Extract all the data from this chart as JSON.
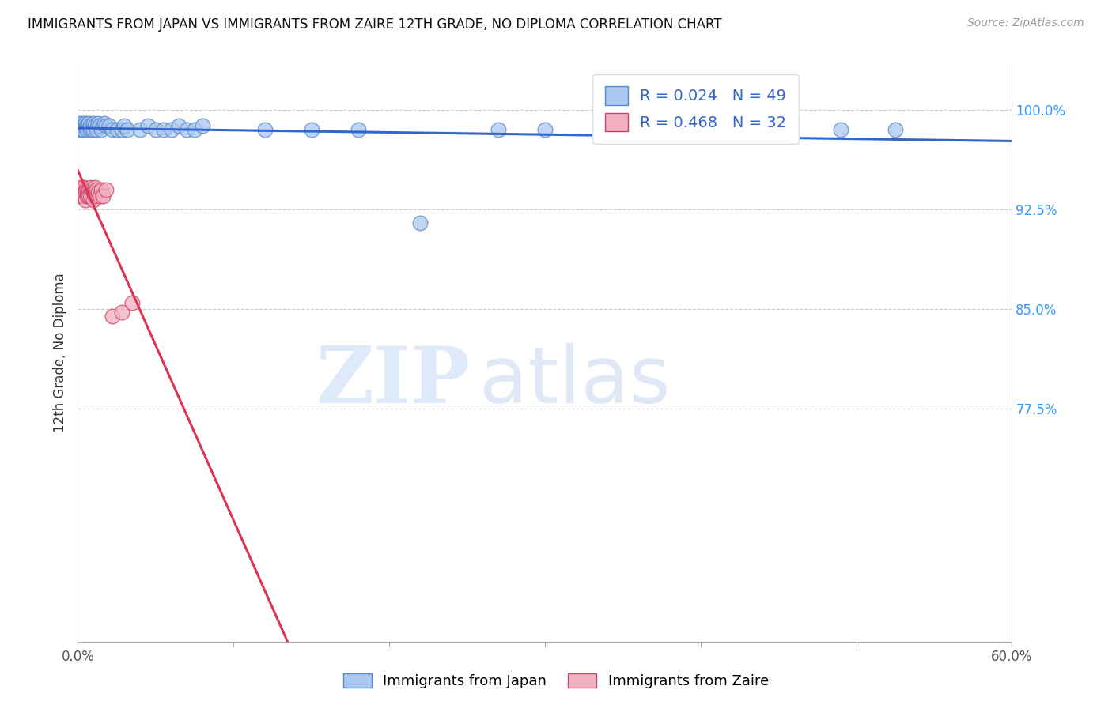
{
  "title": "IMMIGRANTS FROM JAPAN VS IMMIGRANTS FROM ZAIRE 12TH GRADE, NO DIPLOMA CORRELATION CHART",
  "source": "Source: ZipAtlas.com",
  "ylabel": "12th Grade, No Diploma",
  "x_min": 0.0,
  "x_max": 0.6,
  "y_min": 0.6,
  "y_max": 1.035,
  "x_ticks": [
    0.0,
    0.1,
    0.2,
    0.3,
    0.4,
    0.5,
    0.6
  ],
  "x_tick_labels": [
    "0.0%",
    "",
    "",
    "",
    "",
    "",
    "60.0%"
  ],
  "y_ticks": [
    0.775,
    0.85,
    0.925,
    1.0
  ],
  "y_tick_labels": [
    "77.5%",
    "85.0%",
    "92.5%",
    "100.0%"
  ],
  "legend_japan_label": "Immigrants from Japan",
  "legend_zaire_label": "Immigrants from Zaire",
  "R_japan": "0.024",
  "N_japan": "49",
  "R_zaire": "0.468",
  "N_zaire": "32",
  "japan_color": "#aac8f0",
  "zaire_color": "#f0b0c0",
  "japan_edge_color": "#5588cc",
  "zaire_edge_color": "#cc4466",
  "japan_line_color": "#3366cc",
  "zaire_line_color": "#dd3355",
  "background_color": "#ffffff",
  "watermark_zip": "ZIP",
  "watermark_atlas": "atlas",
  "japan_x": [
    0.001,
    0.002,
    0.002,
    0.003,
    0.003,
    0.004,
    0.004,
    0.005,
    0.005,
    0.006,
    0.006,
    0.007,
    0.008,
    0.008,
    0.009,
    0.01,
    0.01,
    0.011,
    0.012,
    0.013,
    0.014,
    0.015,
    0.017,
    0.018,
    0.02,
    0.022,
    0.025,
    0.028,
    0.03,
    0.032,
    0.04,
    0.045,
    0.05,
    0.055,
    0.06,
    0.065,
    0.07,
    0.075,
    0.08,
    0.12,
    0.15,
    0.18,
    0.22,
    0.27,
    0.3,
    0.42,
    0.45,
    0.49,
    0.525
  ],
  "japan_y": [
    0.99,
    0.985,
    0.988,
    0.99,
    0.985,
    0.985,
    0.988,
    0.99,
    0.987,
    0.988,
    0.985,
    0.99,
    0.985,
    0.988,
    0.985,
    0.985,
    0.99,
    0.988,
    0.985,
    0.99,
    0.988,
    0.985,
    0.99,
    0.988,
    0.988,
    0.985,
    0.985,
    0.985,
    0.988,
    0.985,
    0.985,
    0.988,
    0.985,
    0.985,
    0.985,
    0.988,
    0.985,
    0.985,
    0.988,
    0.985,
    0.985,
    0.985,
    0.915,
    0.985,
    0.985,
    0.985,
    0.985,
    0.985,
    0.985
  ],
  "zaire_x": [
    0.001,
    0.001,
    0.002,
    0.002,
    0.003,
    0.003,
    0.004,
    0.004,
    0.004,
    0.005,
    0.005,
    0.005,
    0.006,
    0.006,
    0.007,
    0.007,
    0.008,
    0.008,
    0.009,
    0.01,
    0.01,
    0.011,
    0.011,
    0.012,
    0.013,
    0.014,
    0.015,
    0.016,
    0.018,
    0.022,
    0.028,
    0.035
  ],
  "zaire_y": [
    0.935,
    0.94,
    0.938,
    0.942,
    0.94,
    0.935,
    0.942,
    0.938,
    0.935,
    0.94,
    0.938,
    0.932,
    0.938,
    0.935,
    0.94,
    0.935,
    0.942,
    0.935,
    0.94,
    0.938,
    0.932,
    0.942,
    0.935,
    0.94,
    0.938,
    0.935,
    0.94,
    0.935,
    0.94,
    0.845,
    0.848,
    0.855
  ]
}
